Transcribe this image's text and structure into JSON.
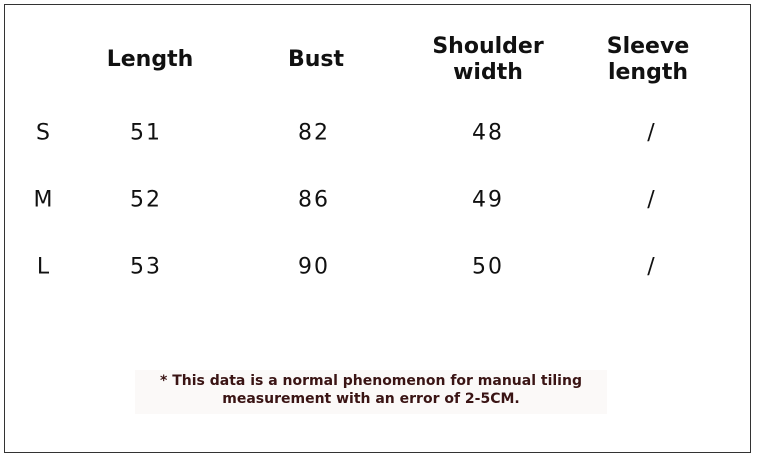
{
  "table": {
    "header": [
      "Length",
      "Bust",
      "Shoulder\nwidth",
      "Sleeve\nlength"
    ],
    "rows": [
      [
        "S",
        "51",
        "82",
        "48",
        "/"
      ],
      [
        "M",
        "52",
        "86",
        "49",
        "/"
      ],
      [
        "L",
        "53",
        "90",
        "50",
        "/"
      ]
    ]
  },
  "note": "* This data is a normal phenomenon for manual tiling\nmeasurement with an error of 2-5CM."
}
